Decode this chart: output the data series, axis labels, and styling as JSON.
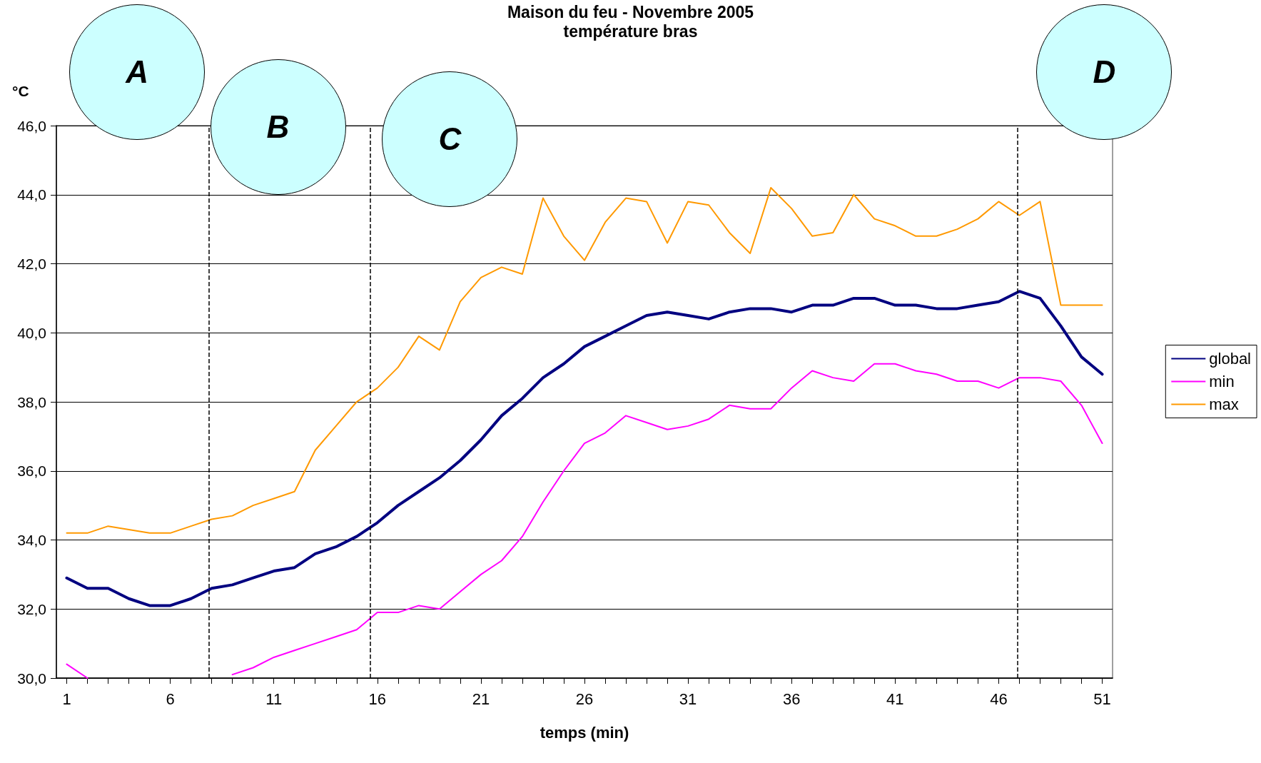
{
  "chart_data": {
    "type": "line",
    "title": "Maison du feu - Novembre 2005",
    "subtitle": "température bras",
    "xlabel": "temps (min)",
    "ylabel": "°C",
    "annotations": [
      "A",
      "B",
      "C",
      "D"
    ],
    "x": [
      1,
      2,
      3,
      4,
      5,
      6,
      7,
      8,
      9,
      10,
      11,
      12,
      13,
      14,
      15,
      16,
      17,
      18,
      19,
      20,
      21,
      22,
      23,
      24,
      25,
      26,
      27,
      28,
      29,
      30,
      31,
      32,
      33,
      34,
      35,
      36,
      37,
      38,
      39,
      40,
      41,
      42,
      43,
      44,
      45,
      46,
      47,
      48,
      49,
      50,
      51
    ],
    "series": [
      {
        "name": "global",
        "color": "#000080",
        "values": [
          32.9,
          32.6,
          32.6,
          32.3,
          32.1,
          32.1,
          32.3,
          32.6,
          32.7,
          32.9,
          33.1,
          33.2,
          33.6,
          33.8,
          34.1,
          34.5,
          35.0,
          35.4,
          35.8,
          36.3,
          36.9,
          37.6,
          38.1,
          38.7,
          39.1,
          39.6,
          39.9,
          40.2,
          40.5,
          40.6,
          40.5,
          40.4,
          40.6,
          40.7,
          40.7,
          40.6,
          40.8,
          40.8,
          41.0,
          41.0,
          40.8,
          40.8,
          40.7,
          40.7,
          40.8,
          40.9,
          41.2,
          41.0,
          40.2,
          39.3,
          38.8
        ]
      },
      {
        "name": "min",
        "color": "#ff00ff",
        "values": [
          30.4,
          30.0,
          null,
          null,
          null,
          null,
          null,
          null,
          30.1,
          30.3,
          30.6,
          30.8,
          31.0,
          31.2,
          31.4,
          31.9,
          31.9,
          32.1,
          32.0,
          32.5,
          33.0,
          33.4,
          34.1,
          35.1,
          36.0,
          36.8,
          37.1,
          37.6,
          37.4,
          37.2,
          37.3,
          37.5,
          37.9,
          37.8,
          37.8,
          38.4,
          38.9,
          38.7,
          38.6,
          39.1,
          39.1,
          38.9,
          38.8,
          38.6,
          38.6,
          38.4,
          38.7,
          38.7,
          38.6,
          37.9,
          36.8
        ]
      },
      {
        "name": "max",
        "color": "#ff9900",
        "values": [
          34.2,
          34.2,
          34.4,
          34.3,
          34.2,
          34.2,
          34.4,
          34.6,
          34.7,
          35.0,
          35.2,
          35.4,
          36.6,
          37.3,
          38.0,
          38.4,
          39.0,
          39.9,
          39.5,
          40.9,
          41.6,
          41.9,
          41.7,
          43.9,
          42.8,
          42.1,
          43.2,
          43.9,
          43.8,
          42.6,
          43.8,
          43.7,
          42.9,
          42.3,
          44.2,
          43.6,
          42.8,
          42.9,
          44.0,
          43.3,
          43.1,
          42.8,
          42.8,
          43.0,
          43.3,
          43.8,
          43.4,
          43.8,
          40.8,
          40.8,
          40.8
        ]
      }
    ],
    "xlim": [
      0.5,
      51.5
    ],
    "xticks": [
      1,
      {
        "value": 2,
        "label": null
      },
      {
        "value": 3,
        "label": null
      },
      {
        "value": 4,
        "label": null
      },
      {
        "value": 5,
        "label": null
      },
      6,
      {
        "value": 7,
        "label": null
      },
      {
        "value": 8,
        "label": null
      },
      {
        "value": 9,
        "label": null
      },
      {
        "value": 10,
        "label": null
      },
      11,
      {
        "value": 12,
        "label": null
      },
      {
        "value": 13,
        "label": null
      },
      {
        "value": 14,
        "label": null
      },
      {
        "value": 15,
        "label": null
      },
      16,
      {
        "value": 17,
        "label": null
      },
      {
        "value": 18,
        "label": null
      },
      {
        "value": 19,
        "label": null
      },
      {
        "value": 20,
        "label": null
      },
      21,
      {
        "value": 22,
        "label": null
      },
      {
        "value": 23,
        "label": null
      },
      {
        "value": 24,
        "label": null
      },
      {
        "value": 25,
        "label": null
      },
      26,
      {
        "value": 27,
        "label": null
      },
      {
        "value": 28,
        "label": null
      },
      {
        "value": 29,
        "label": null
      },
      {
        "value": 30,
        "label": null
      },
      31,
      {
        "value": 32,
        "label": null
      },
      {
        "value": 33,
        "label": null
      },
      {
        "value": 34,
        "label": null
      },
      {
        "value": 35,
        "label": null
      },
      36,
      {
        "value": 37,
        "label": null
      },
      {
        "value": 38,
        "label": null
      },
      {
        "value": 39,
        "label": null
      },
      {
        "value": 40,
        "label": null
      },
      41,
      {
        "value": 42,
        "label": null
      },
      {
        "value": 43,
        "label": null
      },
      {
        "value": 44,
        "label": null
      },
      {
        "value": 45,
        "label": null
      },
      46,
      {
        "value": 47,
        "label": null
      },
      {
        "value": 48,
        "label": null
      },
      {
        "value": 49,
        "label": null
      },
      {
        "value": 50,
        "label": null
      },
      51
    ],
    "ylim": [
      30,
      46
    ],
    "yticks": [
      {
        "value": 30,
        "label": "30,0"
      },
      {
        "value": 32,
        "label": "32,0"
      },
      {
        "value": 34,
        "label": "34,0"
      },
      {
        "value": 36,
        "label": "36,0"
      },
      {
        "value": 38,
        "label": "38,0"
      },
      {
        "value": 40,
        "label": "40,0"
      },
      {
        "value": 42,
        "label": "42,0"
      },
      {
        "value": 44,
        "label": "44,0"
      },
      {
        "value": 46,
        "label": "46,0"
      }
    ],
    "ref_lines": [
      {
        "axis": "x",
        "value": 7.85,
        "color": "#000000",
        "line_style": "dashed"
      },
      {
        "axis": "x",
        "value": 15.65,
        "color": "#000000",
        "line_style": "dashed"
      },
      {
        "axis": "x",
        "value": 46.9,
        "color": "#000000",
        "line_style": "dashed"
      }
    ],
    "grid": "y",
    "legend": "right",
    "marker": "none",
    "line_style": "solid"
  }
}
